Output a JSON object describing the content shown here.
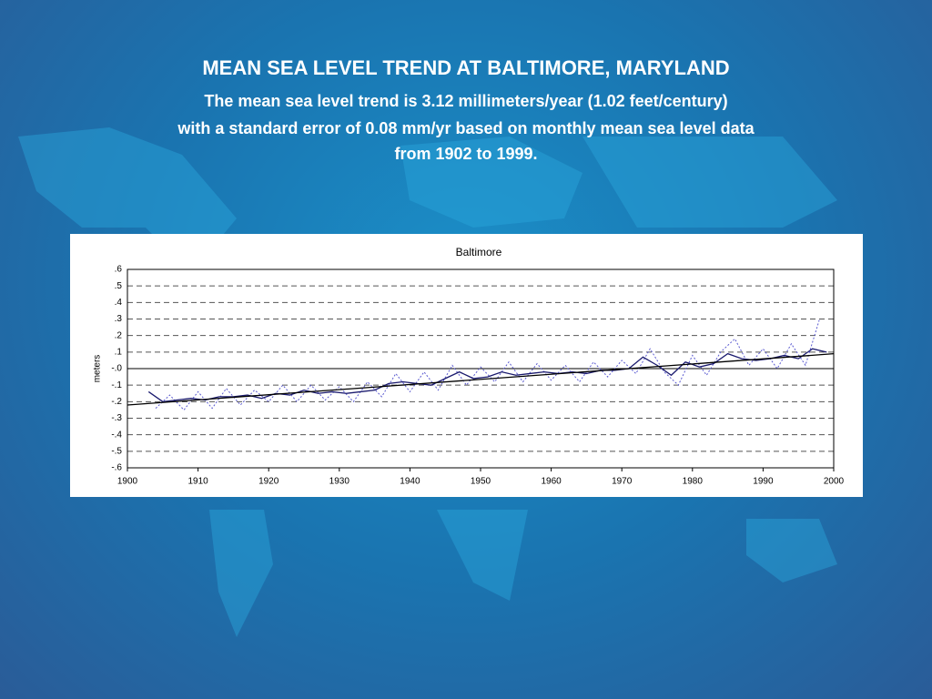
{
  "slide": {
    "title": "MEAN SEA LEVEL TREND AT BALTIMORE, MARYLAND",
    "subtitle": [
      "The mean sea level trend is 3.12 millimeters/year (1.02 feet/century)",
      "with a standard error of 0.08 mm/yr based on monthly mean sea level data",
      "from 1902 to 1999."
    ]
  },
  "chart_data": {
    "type": "line",
    "title": "Baltimore",
    "y_label": "meters",
    "xlim": [
      1900,
      2000
    ],
    "xticks": [
      1900,
      1910,
      1920,
      1930,
      1940,
      1950,
      1960,
      1970,
      1980,
      1990,
      2000
    ],
    "ylim": [
      -0.6,
      0.6
    ],
    "yticks": [
      {
        "value": 0.6,
        "label": ".6"
      },
      {
        "value": 0.5,
        "label": ".5"
      },
      {
        "value": 0.4,
        "label": ".4"
      },
      {
        "value": 0.3,
        "label": ".3"
      },
      {
        "value": 0.2,
        "label": ".2"
      },
      {
        "value": 0.1,
        "label": ".1"
      },
      {
        "value": 0,
        "label": "-.0"
      },
      {
        "value": -0.1,
        "label": "-.1"
      },
      {
        "value": -0.2,
        "label": "-.2"
      },
      {
        "value": -0.3,
        "label": "-.3"
      },
      {
        "value": -0.4,
        "label": "-.4"
      },
      {
        "value": -0.5,
        "label": "-.5"
      },
      {
        "value": -0.6,
        "label": "-.6"
      }
    ],
    "grid": true,
    "series": [
      {
        "color": "#5a5ad0",
        "style": "dotted",
        "x": [
          1904,
          1906,
          1908,
          1910,
          1912,
          1914,
          1916,
          1918,
          1920,
          1922,
          1924,
          1926,
          1928,
          1930,
          1932,
          1934,
          1936,
          1938,
          1940,
          1942,
          1944,
          1946,
          1948,
          1950,
          1952,
          1954,
          1956,
          1958,
          1960,
          1962,
          1964,
          1966,
          1968,
          1970,
          1972,
          1974,
          1976,
          1978,
          1980,
          1982,
          1984,
          1986,
          1988,
          1990,
          1992,
          1994,
          1996,
          1998
        ],
        "values": [
          -0.24,
          -0.16,
          -0.25,
          -0.14,
          -0.24,
          -0.12,
          -0.22,
          -0.13,
          -0.2,
          -0.1,
          -0.2,
          -0.1,
          -0.19,
          -0.11,
          -0.2,
          -0.08,
          -0.17,
          -0.03,
          -0.14,
          -0.02,
          -0.13,
          0.02,
          -0.1,
          0.01,
          -0.08,
          0.04,
          -0.08,
          0.03,
          -0.07,
          0.02,
          -0.08,
          0.04,
          -0.05,
          0.05,
          -0.03,
          0.12,
          -0.02,
          -0.1,
          0.08,
          -0.04,
          0.1,
          0.18,
          0.02,
          0.12,
          0.0,
          0.15,
          0.02,
          0.3
        ]
      },
      {
        "color": "#1a1a6e",
        "style": "solid",
        "x": [
          1903,
          1905,
          1907,
          1909,
          1911,
          1913,
          1915,
          1917,
          1919,
          1921,
          1923,
          1925,
          1927,
          1929,
          1931,
          1933,
          1935,
          1937,
          1939,
          1941,
          1943,
          1945,
          1947,
          1949,
          1951,
          1953,
          1955,
          1957,
          1959,
          1961,
          1963,
          1965,
          1967,
          1969,
          1971,
          1973,
          1975,
          1977,
          1979,
          1981,
          1983,
          1985,
          1987,
          1989,
          1991,
          1993,
          1995,
          1997,
          1999
        ],
        "values": [
          -0.14,
          -0.2,
          -0.19,
          -0.18,
          -0.19,
          -0.17,
          -0.17,
          -0.16,
          -0.18,
          -0.15,
          -0.16,
          -0.13,
          -0.15,
          -0.14,
          -0.15,
          -0.14,
          -0.13,
          -0.09,
          -0.08,
          -0.09,
          -0.1,
          -0.06,
          -0.02,
          -0.06,
          -0.05,
          -0.02,
          -0.04,
          -0.03,
          -0.02,
          -0.03,
          -0.02,
          -0.03,
          -0.01,
          -0.01,
          0.0,
          0.07,
          0.02,
          -0.04,
          0.04,
          0.01,
          0.03,
          0.09,
          0.06,
          0.05,
          0.06,
          0.08,
          0.06,
          0.12,
          0.1
        ]
      },
      {
        "color": "#000000",
        "style": "solid",
        "x": [
          1900,
          2000
        ],
        "values": [
          -0.22,
          0.09
        ]
      }
    ]
  }
}
